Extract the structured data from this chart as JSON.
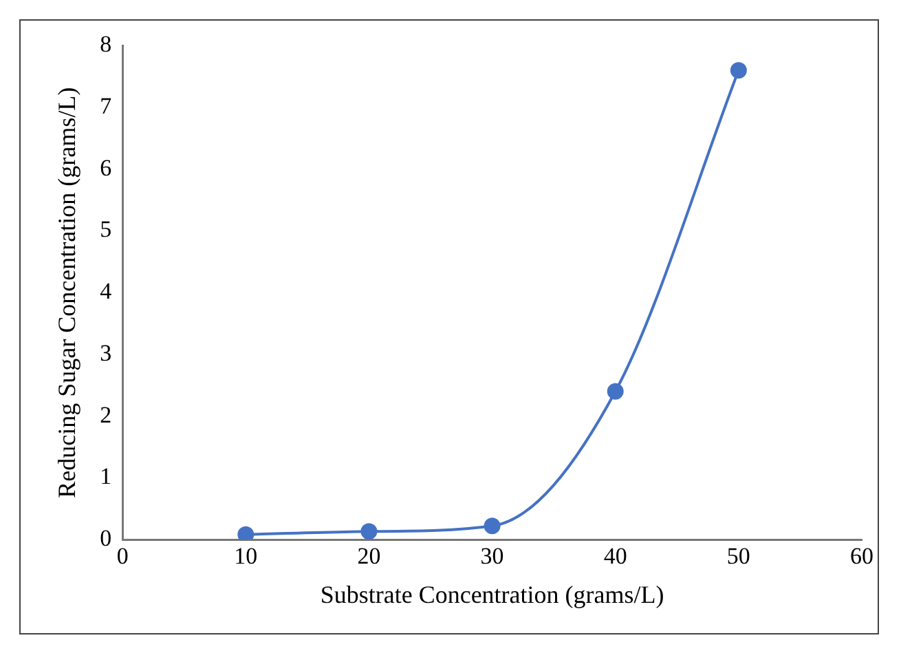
{
  "chart_data": {
    "type": "line",
    "xlabel": "Substrate Concentration (grams/L)",
    "ylabel": "Reducing Sugar Concentration (grams/L)",
    "x": [
      10,
      20,
      30,
      40,
      50
    ],
    "series": [
      {
        "color": "#4472c4",
        "values": [
          0.08,
          0.13,
          0.22,
          2.4,
          7.6
        ]
      }
    ],
    "xlim": [
      0,
      60
    ],
    "xticks": [
      0,
      10,
      20,
      30,
      40,
      50,
      60
    ],
    "ylim": [
      0,
      8
    ],
    "yticks": [
      0,
      1,
      2,
      3,
      4,
      5,
      6,
      7,
      8
    ],
    "grid": false,
    "legend": false,
    "marker": "circle",
    "line_style": "solid"
  }
}
